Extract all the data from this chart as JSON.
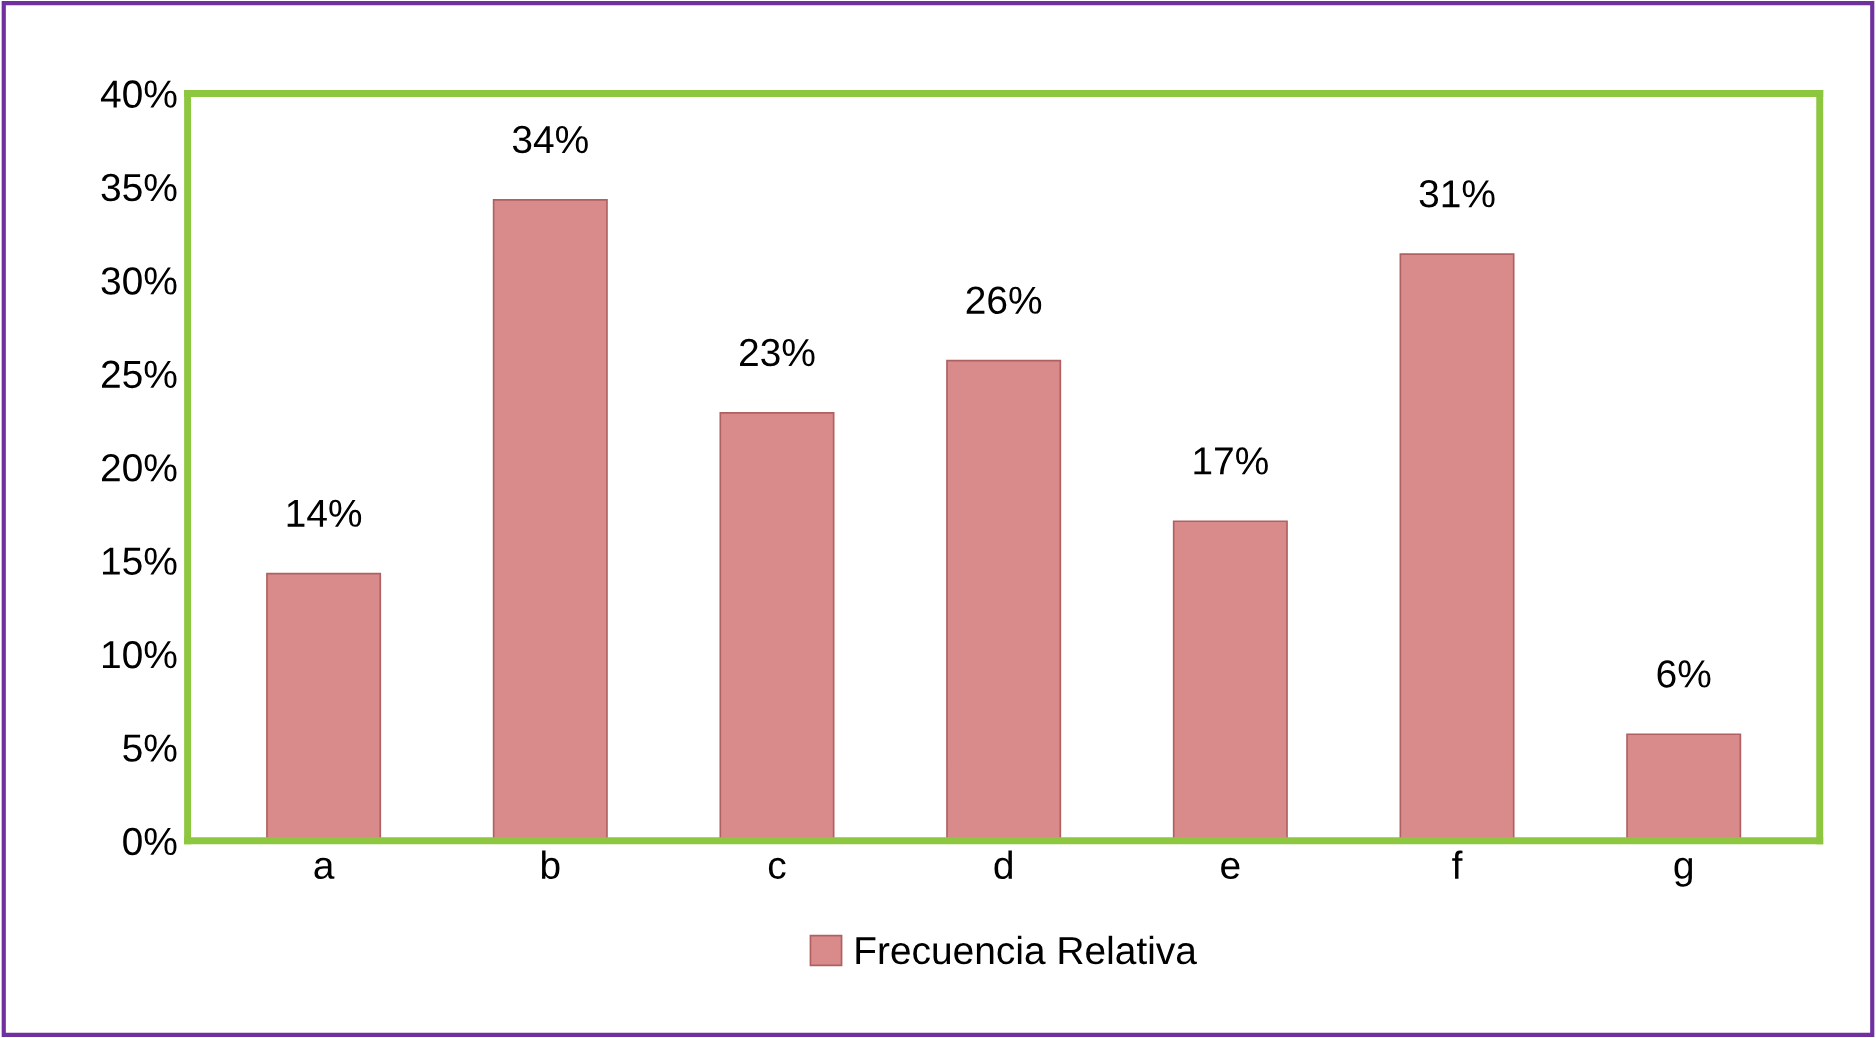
{
  "chart_data": {
    "type": "bar",
    "categories": [
      "a",
      "b",
      "c",
      "d",
      "e",
      "f",
      "g"
    ],
    "series": [
      {
        "name": "Frecuencia Relativa",
        "color": "#d98a8a",
        "values": [
          14.3,
          34.3,
          22.9,
          25.7,
          17.1,
          31.4,
          5.7
        ],
        "value_labels": [
          "14%",
          "34%",
          "23%",
          "26%",
          "17%",
          "31%",
          "6%"
        ]
      }
    ],
    "ylim": [
      0,
      40
    ],
    "yticks": [
      {
        "value": 0,
        "label": "0%"
      },
      {
        "value": 5,
        "label": "5%"
      },
      {
        "value": 10,
        "label": "10%"
      },
      {
        "value": 15,
        "label": "15%"
      },
      {
        "value": 20,
        "label": "20%"
      },
      {
        "value": 25,
        "label": "25%"
      },
      {
        "value": 30,
        "label": "30%"
      },
      {
        "value": 35,
        "label": "35%"
      },
      {
        "value": 40,
        "label": "40%"
      }
    ],
    "grid": false,
    "legend": "bottom"
  }
}
